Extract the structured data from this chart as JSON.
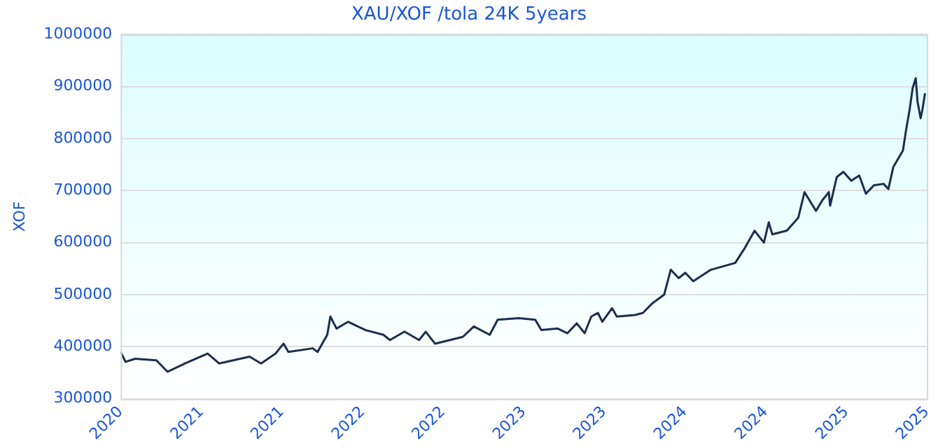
{
  "chart_data": {
    "type": "line",
    "title": "XAU/XOF /tola 24K 5years",
    "ylabel": "XOF",
    "x": [
      "2020-11-10",
      "2020-11-21",
      "2020-12-13",
      "2021-01-30",
      "2021-02-24",
      "2021-04-05",
      "2021-05-26",
      "2021-06-21",
      "2021-08-29",
      "2021-09-24",
      "2021-10-27",
      "2021-11-14",
      "2021-11-25",
      "2022-01-19",
      "2022-01-30",
      "2022-02-21",
      "2022-02-28",
      "2022-03-14",
      "2022-04-09",
      "2022-05-19",
      "2022-06-28",
      "2022-07-13",
      "2022-08-15",
      "2022-09-17",
      "2022-10-02",
      "2022-10-23",
      "2022-12-25",
      "2023-01-19",
      "2023-02-24",
      "2023-03-14",
      "2023-05-01",
      "2023-06-07",
      "2023-06-21",
      "2023-07-28",
      "2023-08-19",
      "2023-09-09",
      "2023-09-27",
      "2023-10-12",
      "2023-10-27",
      "2023-11-06",
      "2023-11-28",
      "2023-12-09",
      "2024-01-19",
      "2024-02-06",
      "2024-02-28",
      "2024-03-25",
      "2024-04-09",
      "2024-04-27",
      "2024-05-12",
      "2024-05-30",
      "2024-07-09",
      "2024-09-02",
      "2024-09-24",
      "2024-10-16",
      "2024-11-06",
      "2024-11-17",
      "2024-11-25",
      "2024-12-28",
      "2025-01-23",
      "2025-02-06",
      "2025-03-04",
      "2025-03-18",
      "2025-04-02",
      "2025-04-05",
      "2025-04-20",
      "2025-05-05",
      "2025-05-23",
      "2025-06-10",
      "2025-06-25",
      "2025-07-13",
      "2025-08-04",
      "2025-08-15",
      "2025-08-26",
      "2025-09-17",
      "2025-09-24",
      "2025-10-02",
      "2025-10-09",
      "2025-10-16",
      "2025-10-20",
      "2025-10-27",
      "2025-10-31",
      "2025-11-06"
    ],
    "series": [
      {
        "color": "#1b2d4f",
        "values": [
          390000,
          371000,
          377000,
          374000,
          352000,
          368000,
          387000,
          368000,
          381000,
          368000,
          387000,
          406000,
          390000,
          397000,
          390000,
          423000,
          458000,
          435000,
          448000,
          432000,
          423000,
          413000,
          429000,
          413000,
          429000,
          406000,
          419000,
          439000,
          423000,
          452000,
          455000,
          452000,
          432000,
          435000,
          426000,
          445000,
          426000,
          458000,
          465000,
          448000,
          474000,
          458000,
          461000,
          465000,
          484000,
          500000,
          548000,
          532000,
          542000,
          526000,
          548000,
          561000,
          590000,
          623000,
          600000,
          639000,
          616000,
          623000,
          648000,
          697000,
          661000,
          681000,
          697000,
          671000,
          726000,
          736000,
          719000,
          729000,
          694000,
          710000,
          713000,
          703000,
          745000,
          777000,
          816000,
          855000,
          897000,
          916000,
          871000,
          839000,
          855000,
          887000
        ]
      }
    ],
    "xlim": [
      "2020-11-10",
      "2025-11-10"
    ],
    "xticks": [
      {
        "value": "2020-11-10",
        "label": "2020"
      },
      {
        "value": "2021-05-12",
        "label": "2021"
      },
      {
        "value": "2021-11-10",
        "label": "2021"
      },
      {
        "value": "2022-05-12",
        "label": "2022"
      },
      {
        "value": "2022-11-10",
        "label": "2022"
      },
      {
        "value": "2023-05-12",
        "label": "2023"
      },
      {
        "value": "2023-11-10",
        "label": "2023"
      },
      {
        "value": "2024-05-11",
        "label": "2024"
      },
      {
        "value": "2024-11-10",
        "label": "2024"
      },
      {
        "value": "2025-05-12",
        "label": "2025"
      },
      {
        "value": "2025-11-10",
        "label": "2025"
      }
    ],
    "ylim": [
      300000,
      1000000
    ],
    "yticks": [
      300000,
      400000,
      500000,
      600000,
      700000,
      800000,
      900000,
      1000000
    ],
    "grid": "y",
    "marker": "none",
    "line_style": "solid"
  }
}
